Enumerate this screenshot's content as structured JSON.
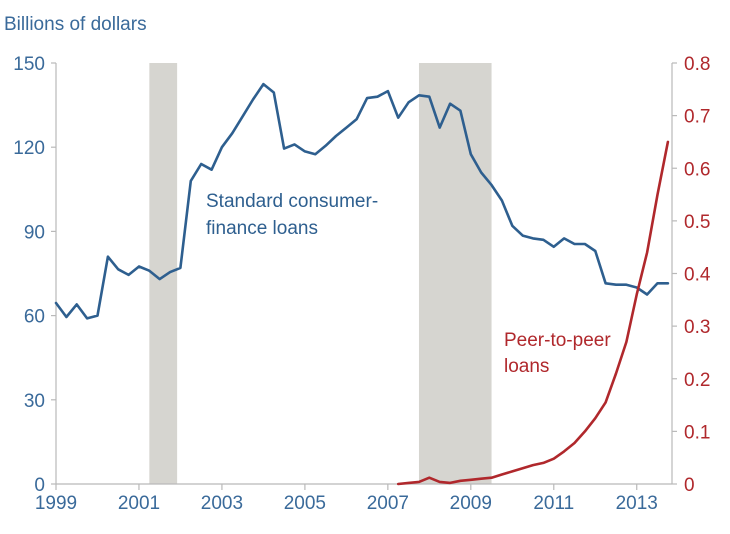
{
  "chart_data": {
    "type": "line",
    "title": "",
    "ylabel_left": "Billions of dollars",
    "ylabel_right": "",
    "x_range": [
      1999,
      2013.85
    ],
    "y_left_range": [
      0,
      150
    ],
    "y_right_range": [
      0,
      0.8
    ],
    "x_ticks": [
      {
        "value": 1999,
        "label": "1999"
      },
      {
        "value": 2001,
        "label": "2001"
      },
      {
        "value": 2003,
        "label": "2003"
      },
      {
        "value": 2005,
        "label": "2005"
      },
      {
        "value": 2007,
        "label": "2007"
      },
      {
        "value": 2009,
        "label": "2009"
      },
      {
        "value": 2011,
        "label": "2011"
      },
      {
        "value": 2013,
        "label": "2013"
      }
    ],
    "y_left_ticks": [
      {
        "value": 0,
        "label": "0"
      },
      {
        "value": 30,
        "label": "30"
      },
      {
        "value": 60,
        "label": "60"
      },
      {
        "value": 90,
        "label": "90"
      },
      {
        "value": 120,
        "label": "120"
      },
      {
        "value": 150,
        "label": "150"
      }
    ],
    "y_right_ticks": [
      {
        "value": 0,
        "label": "0"
      },
      {
        "value": 0.1,
        "label": "0.1"
      },
      {
        "value": 0.2,
        "label": "0.2"
      },
      {
        "value": 0.3,
        "label": "0.3"
      },
      {
        "value": 0.4,
        "label": "0.4"
      },
      {
        "value": 0.5,
        "label": "0.5"
      },
      {
        "value": 0.6,
        "label": "0.6"
      },
      {
        "value": 0.7,
        "label": "0.7"
      },
      {
        "value": 0.8,
        "label": "0.8"
      }
    ],
    "recessions": [
      {
        "start": 2001.25,
        "end": 2001.92
      },
      {
        "start": 2007.75,
        "end": 2009.5
      }
    ],
    "series": [
      {
        "name": "Standard consumer-finance loans",
        "axis": "left",
        "color": "#2e5f8f",
        "label_lines": [
          "Standard consumer-",
          "finance loans"
        ],
        "points": [
          [
            1999.0,
            64.5
          ],
          [
            1999.25,
            59.5
          ],
          [
            1999.5,
            64.0
          ],
          [
            1999.75,
            59.0
          ],
          [
            2000.0,
            60.0
          ],
          [
            2000.25,
            81.0
          ],
          [
            2000.5,
            76.5
          ],
          [
            2000.75,
            74.5
          ],
          [
            2001.0,
            77.5
          ],
          [
            2001.25,
            76.0
          ],
          [
            2001.5,
            73.0
          ],
          [
            2001.75,
            75.5
          ],
          [
            2002.0,
            77.0
          ],
          [
            2002.25,
            108.0
          ],
          [
            2002.5,
            114.0
          ],
          [
            2002.75,
            112.0
          ],
          [
            2003.0,
            120.0
          ],
          [
            2003.25,
            125.0
          ],
          [
            2003.5,
            131.0
          ],
          [
            2003.75,
            137.0
          ],
          [
            2004.0,
            142.5
          ],
          [
            2004.25,
            139.5
          ],
          [
            2004.5,
            119.5
          ],
          [
            2004.75,
            121.0
          ],
          [
            2005.0,
            118.5
          ],
          [
            2005.25,
            117.5
          ],
          [
            2005.5,
            120.5
          ],
          [
            2005.75,
            124.0
          ],
          [
            2006.0,
            127.0
          ],
          [
            2006.25,
            130.0
          ],
          [
            2006.5,
            137.5
          ],
          [
            2006.75,
            138.0
          ],
          [
            2007.0,
            140.0
          ],
          [
            2007.25,
            130.5
          ],
          [
            2007.5,
            136.0
          ],
          [
            2007.75,
            138.5
          ],
          [
            2008.0,
            138.0
          ],
          [
            2008.25,
            127.0
          ],
          [
            2008.5,
            135.5
          ],
          [
            2008.75,
            133.0
          ],
          [
            2009.0,
            117.5
          ],
          [
            2009.25,
            111.0
          ],
          [
            2009.5,
            106.5
          ],
          [
            2009.75,
            101.0
          ],
          [
            2010.0,
            92.0
          ],
          [
            2010.25,
            88.5
          ],
          [
            2010.5,
            87.5
          ],
          [
            2010.75,
            87.0
          ],
          [
            2011.0,
            84.5
          ],
          [
            2011.25,
            87.5
          ],
          [
            2011.5,
            85.5
          ],
          [
            2011.75,
            85.5
          ],
          [
            2012.0,
            83.0
          ],
          [
            2012.25,
            71.5
          ],
          [
            2012.5,
            71.0
          ],
          [
            2012.75,
            71.0
          ],
          [
            2013.0,
            70.0
          ],
          [
            2013.25,
            67.5
          ],
          [
            2013.5,
            71.5
          ],
          [
            2013.75,
            71.5
          ]
        ]
      },
      {
        "name": "Peer-to-peer loans",
        "axis": "right",
        "color": "#b0282c",
        "label_lines": [
          "Peer-to-peer",
          "loans"
        ],
        "points": [
          [
            2007.25,
            0.0
          ],
          [
            2007.5,
            0.002
          ],
          [
            2007.75,
            0.004
          ],
          [
            2008.0,
            0.012
          ],
          [
            2008.25,
            0.004
          ],
          [
            2008.5,
            0.002
          ],
          [
            2008.75,
            0.006
          ],
          [
            2009.0,
            0.008
          ],
          [
            2009.25,
            0.01
          ],
          [
            2009.5,
            0.012
          ],
          [
            2009.75,
            0.018
          ],
          [
            2010.0,
            0.024
          ],
          [
            2010.25,
            0.03
          ],
          [
            2010.5,
            0.036
          ],
          [
            2010.75,
            0.04
          ],
          [
            2011.0,
            0.048
          ],
          [
            2011.25,
            0.062
          ],
          [
            2011.5,
            0.078
          ],
          [
            2011.75,
            0.1
          ],
          [
            2012.0,
            0.125
          ],
          [
            2012.25,
            0.155
          ],
          [
            2012.5,
            0.21
          ],
          [
            2012.75,
            0.27
          ],
          [
            2013.0,
            0.36
          ],
          [
            2013.25,
            0.44
          ],
          [
            2013.5,
            0.55
          ],
          [
            2013.75,
            0.65
          ]
        ]
      }
    ]
  }
}
